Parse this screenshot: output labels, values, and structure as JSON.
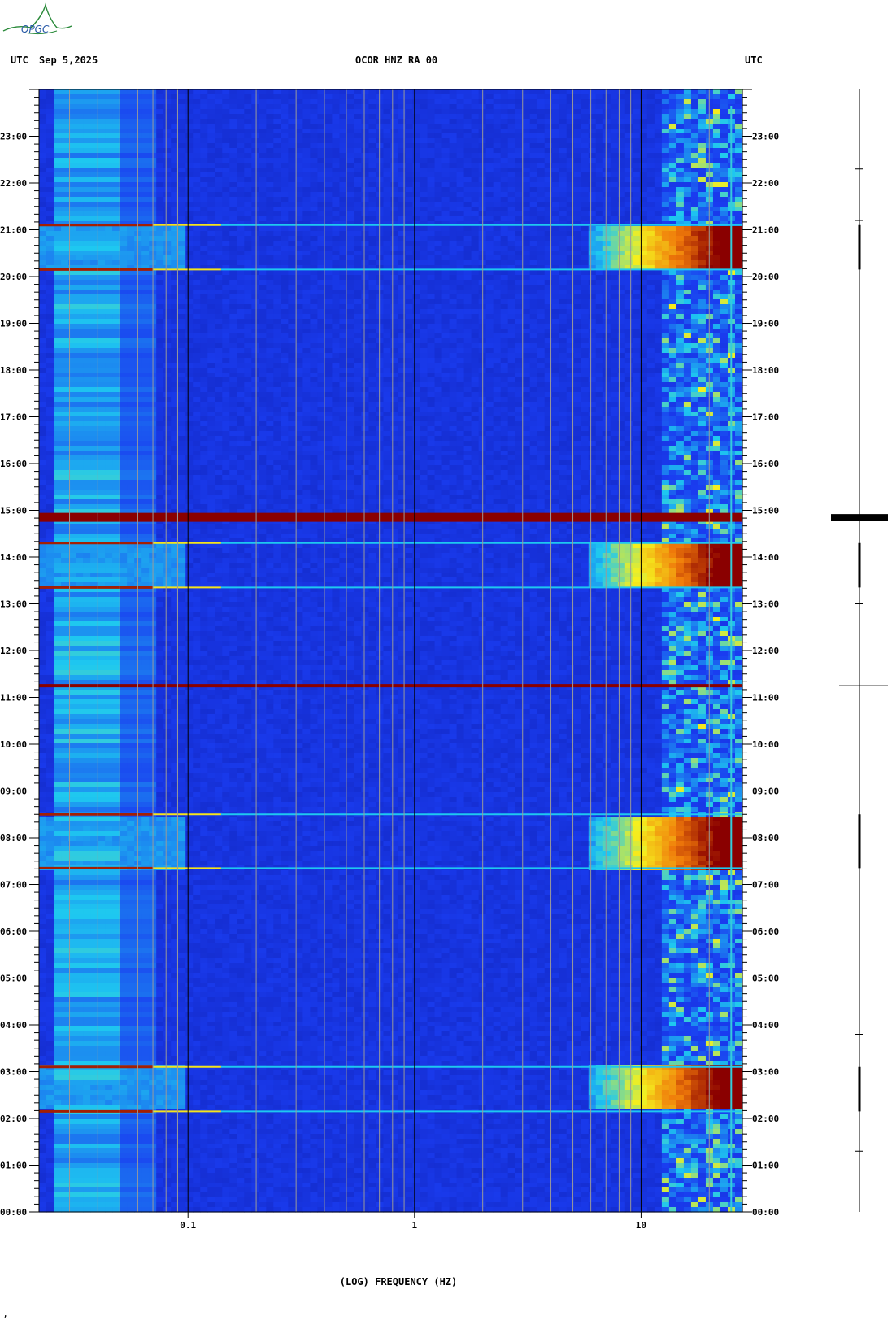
{
  "header": {
    "left_label": "UTC",
    "date": "Sep 5,2025",
    "station": "OCOR HNZ RA 00",
    "right_label": "UTC"
  },
  "logo_text": "OPGC",
  "footer_mark": "‚",
  "chart_data": {
    "type": "heatmap",
    "title": "OCOR HNZ RA 00",
    "xlabel": "(LOG) FREQUENCY (HZ)",
    "x_scale": "log",
    "x_range_hz": [
      0.022,
      28
    ],
    "x_ticks": [
      {
        "value": 0.1,
        "label": "0.1"
      },
      {
        "value": 1,
        "label": "1"
      },
      {
        "value": 10,
        "label": "10"
      }
    ],
    "y_range_hours": [
      0,
      24
    ],
    "y_ticks": [
      "00:00",
      "01:00",
      "02:00",
      "03:00",
      "04:00",
      "05:00",
      "06:00",
      "07:00",
      "08:00",
      "09:00",
      "10:00",
      "11:00",
      "12:00",
      "13:00",
      "14:00",
      "15:00",
      "16:00",
      "17:00",
      "18:00",
      "19:00",
      "20:00",
      "21:00",
      "22:00",
      "23:00"
    ],
    "colormap": [
      "#0a0f8f",
      "#1a3cf0",
      "#1ec8f0",
      "#f5f01e",
      "#f07a0a",
      "#8a0000"
    ],
    "energy_bands_hours": [
      {
        "start": 2.15,
        "end": 3.1
      },
      {
        "start": 7.35,
        "end": 8.5
      },
      {
        "start": 13.35,
        "end": 14.3
      },
      {
        "start": 20.15,
        "end": 21.1
      }
    ],
    "transients_hours": [
      11.25,
      14.85
    ]
  }
}
